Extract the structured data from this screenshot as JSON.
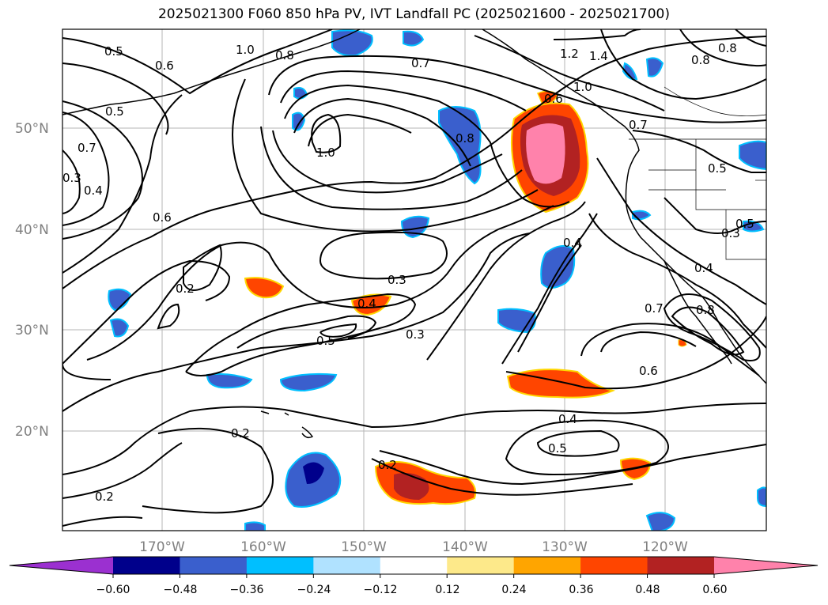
{
  "title": "2025021300 F060 850 hPa PV, IVT Landfall PC (2025021600 - 2025021700)",
  "map": {
    "lat_labels": [
      "50°N",
      "40°N",
      "30°N",
      "20°N"
    ],
    "lon_labels": [
      "170°W",
      "160°W",
      "150°W",
      "140°W",
      "130°W",
      "120°W"
    ],
    "contour_labels": [
      "0.5",
      "0.6",
      "1.0",
      "0.8",
      "0.7",
      "1.2",
      "1.4",
      "1.0",
      "0.8",
      "0.8",
      "0.5",
      "0.7",
      "0.4",
      "0.3",
      "1.0",
      "0.6",
      "0.8",
      "0.6",
      "0.7",
      "0.5",
      "0.2",
      "0.3",
      "0.4",
      "0.3",
      "0.5",
      "0.4",
      "0.4",
      "0.7",
      "0.8",
      "0.3",
      "0.6",
      "0.4",
      "0.2",
      "0.2",
      "0.2",
      "0.5",
      "0.5"
    ]
  },
  "colorbar": {
    "tick_labels": [
      "−0.60",
      "−0.48",
      "−0.36",
      "−0.24",
      "−0.12",
      "0.12",
      "0.24",
      "0.36",
      "0.48",
      "0.60"
    ],
    "colors": [
      "#9b30d0",
      "#00008b",
      "#3a5fcd",
      "#00bfff",
      "#b0e2ff",
      "#ffffff",
      "#fde98a",
      "#ffa500",
      "#ff4500",
      "#b22222",
      "#ff82ab"
    ]
  }
}
